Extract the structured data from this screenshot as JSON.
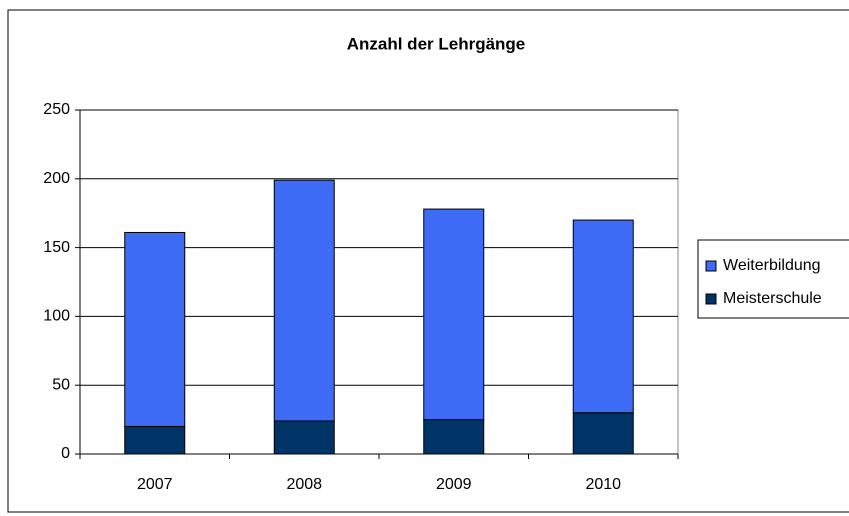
{
  "chart_data": {
    "type": "bar",
    "stacked": true,
    "title": "Anzahl der Lehrgänge",
    "categories": [
      "2007",
      "2008",
      "2009",
      "2010"
    ],
    "series": [
      {
        "name": "Meisterschule",
        "color": "#003366",
        "values": [
          20,
          24,
          25,
          30
        ]
      },
      {
        "name": "Weiterbildung",
        "color": "#3d6bf5",
        "values": [
          141,
          175,
          153,
          140
        ]
      }
    ],
    "ylim": [
      0,
      250
    ],
    "yticks": [
      0,
      50,
      100,
      150,
      200,
      250
    ],
    "grid": true,
    "legend": "right"
  }
}
